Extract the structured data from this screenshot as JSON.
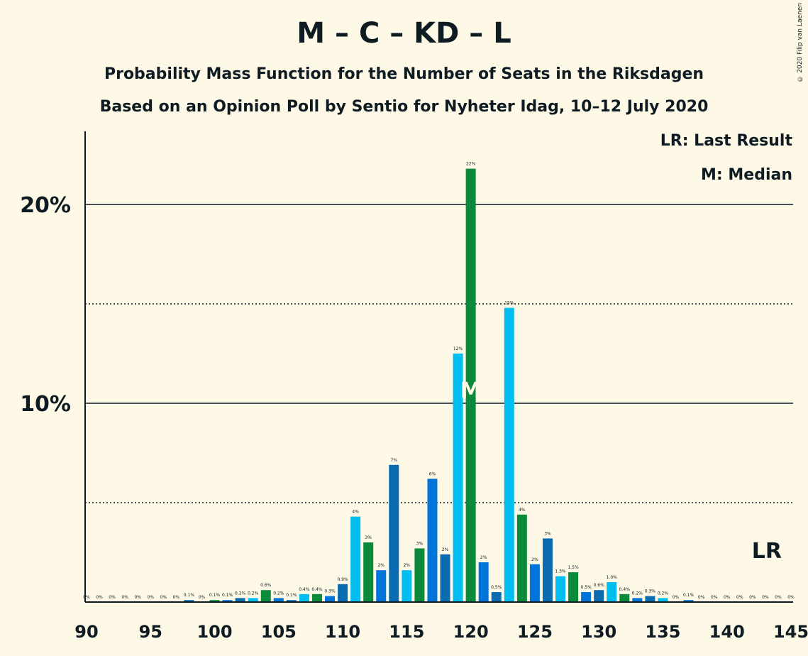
{
  "title": "M – C – KD – L",
  "subtitle": "Probability Mass Function for the Number of Seats in the Riksdagen",
  "subtitle2": "Based on an Opinion Poll by Sentio for Nyheter Idag, 10–12 July 2020",
  "copyright": "© 2020 Filip van Laenen",
  "legend": {
    "last_result": "LR: Last Result",
    "median": "M: Median"
  },
  "markers": {
    "last_result_label": "LR",
    "last_result_seat": 143,
    "median_label": "M",
    "median_seat": 120
  },
  "colors": {
    "background": "#FEF9E6",
    "palette": [
      "#0A6BB0",
      "#00BEF0",
      "#0C8A3C",
      "#0074D9"
    ]
  },
  "chart_data": {
    "type": "bar",
    "xlabel": "",
    "ylabel": "",
    "xlim": [
      90,
      145
    ],
    "ylim": [
      0,
      23.5
    ],
    "xticks": [
      90,
      95,
      100,
      105,
      110,
      115,
      120,
      125,
      130,
      135,
      140,
      145
    ],
    "yticks": [
      {
        "value": 10,
        "label": "10%"
      },
      {
        "value": 20,
        "label": "20%"
      }
    ],
    "dotted_gridlines": [
      5,
      15
    ],
    "grid": true,
    "seats": [
      90,
      91,
      92,
      93,
      94,
      95,
      96,
      97,
      98,
      99,
      100,
      101,
      102,
      103,
      104,
      105,
      106,
      107,
      108,
      109,
      110,
      111,
      112,
      113,
      114,
      115,
      116,
      117,
      118,
      119,
      120,
      121,
      122,
      123,
      124,
      125,
      126,
      127,
      128,
      129,
      130,
      131,
      132,
      133,
      134,
      135,
      136,
      137,
      138,
      139,
      140,
      141,
      142,
      143,
      144,
      145
    ],
    "values": [
      0,
      0,
      0,
      0,
      0,
      0,
      0,
      0,
      0.1,
      0,
      0.1,
      0.1,
      0.2,
      0.2,
      0.6,
      0.2,
      0.1,
      0.4,
      0.4,
      0.3,
      0.9,
      4.3,
      3.0,
      1.6,
      6.9,
      1.6,
      2.7,
      6.2,
      2.4,
      12.5,
      21.8,
      2.0,
      0.5,
      14.8,
      4.4,
      1.9,
      3.2,
      1.3,
      1.5,
      0.5,
      0.6,
      1.0,
      0.4,
      0.2,
      0.3,
      0.2,
      0,
      0.1,
      0,
      0,
      0,
      0,
      0,
      0,
      0,
      0
    ],
    "labels": [
      "0%",
      "0%",
      "0%",
      "0%",
      "0%",
      "0%",
      "0%",
      "0%",
      "0.1%",
      "0%",
      "0.1%",
      "0.1%",
      "0.2%",
      "0.2%",
      "0.6%",
      "0.2%",
      "0.1%",
      "0.4%",
      "0.4%",
      "0.3%",
      "0.9%",
      "4%",
      "3%",
      "2%",
      "7%",
      "2%",
      "3%",
      "6%",
      "2%",
      "12%",
      "22%",
      "2%",
      "0.5%",
      "15%",
      "4%",
      "2%",
      "3%",
      "1.3%",
      "1.5%",
      "0.5%",
      "0.6%",
      "1.0%",
      "0.4%",
      "0.2%",
      "0.3%",
      "0.2%",
      "0%",
      "0.1%",
      "0%",
      "0%",
      "0%",
      "0%",
      "0%",
      "0%",
      "0%",
      "0%"
    ]
  }
}
